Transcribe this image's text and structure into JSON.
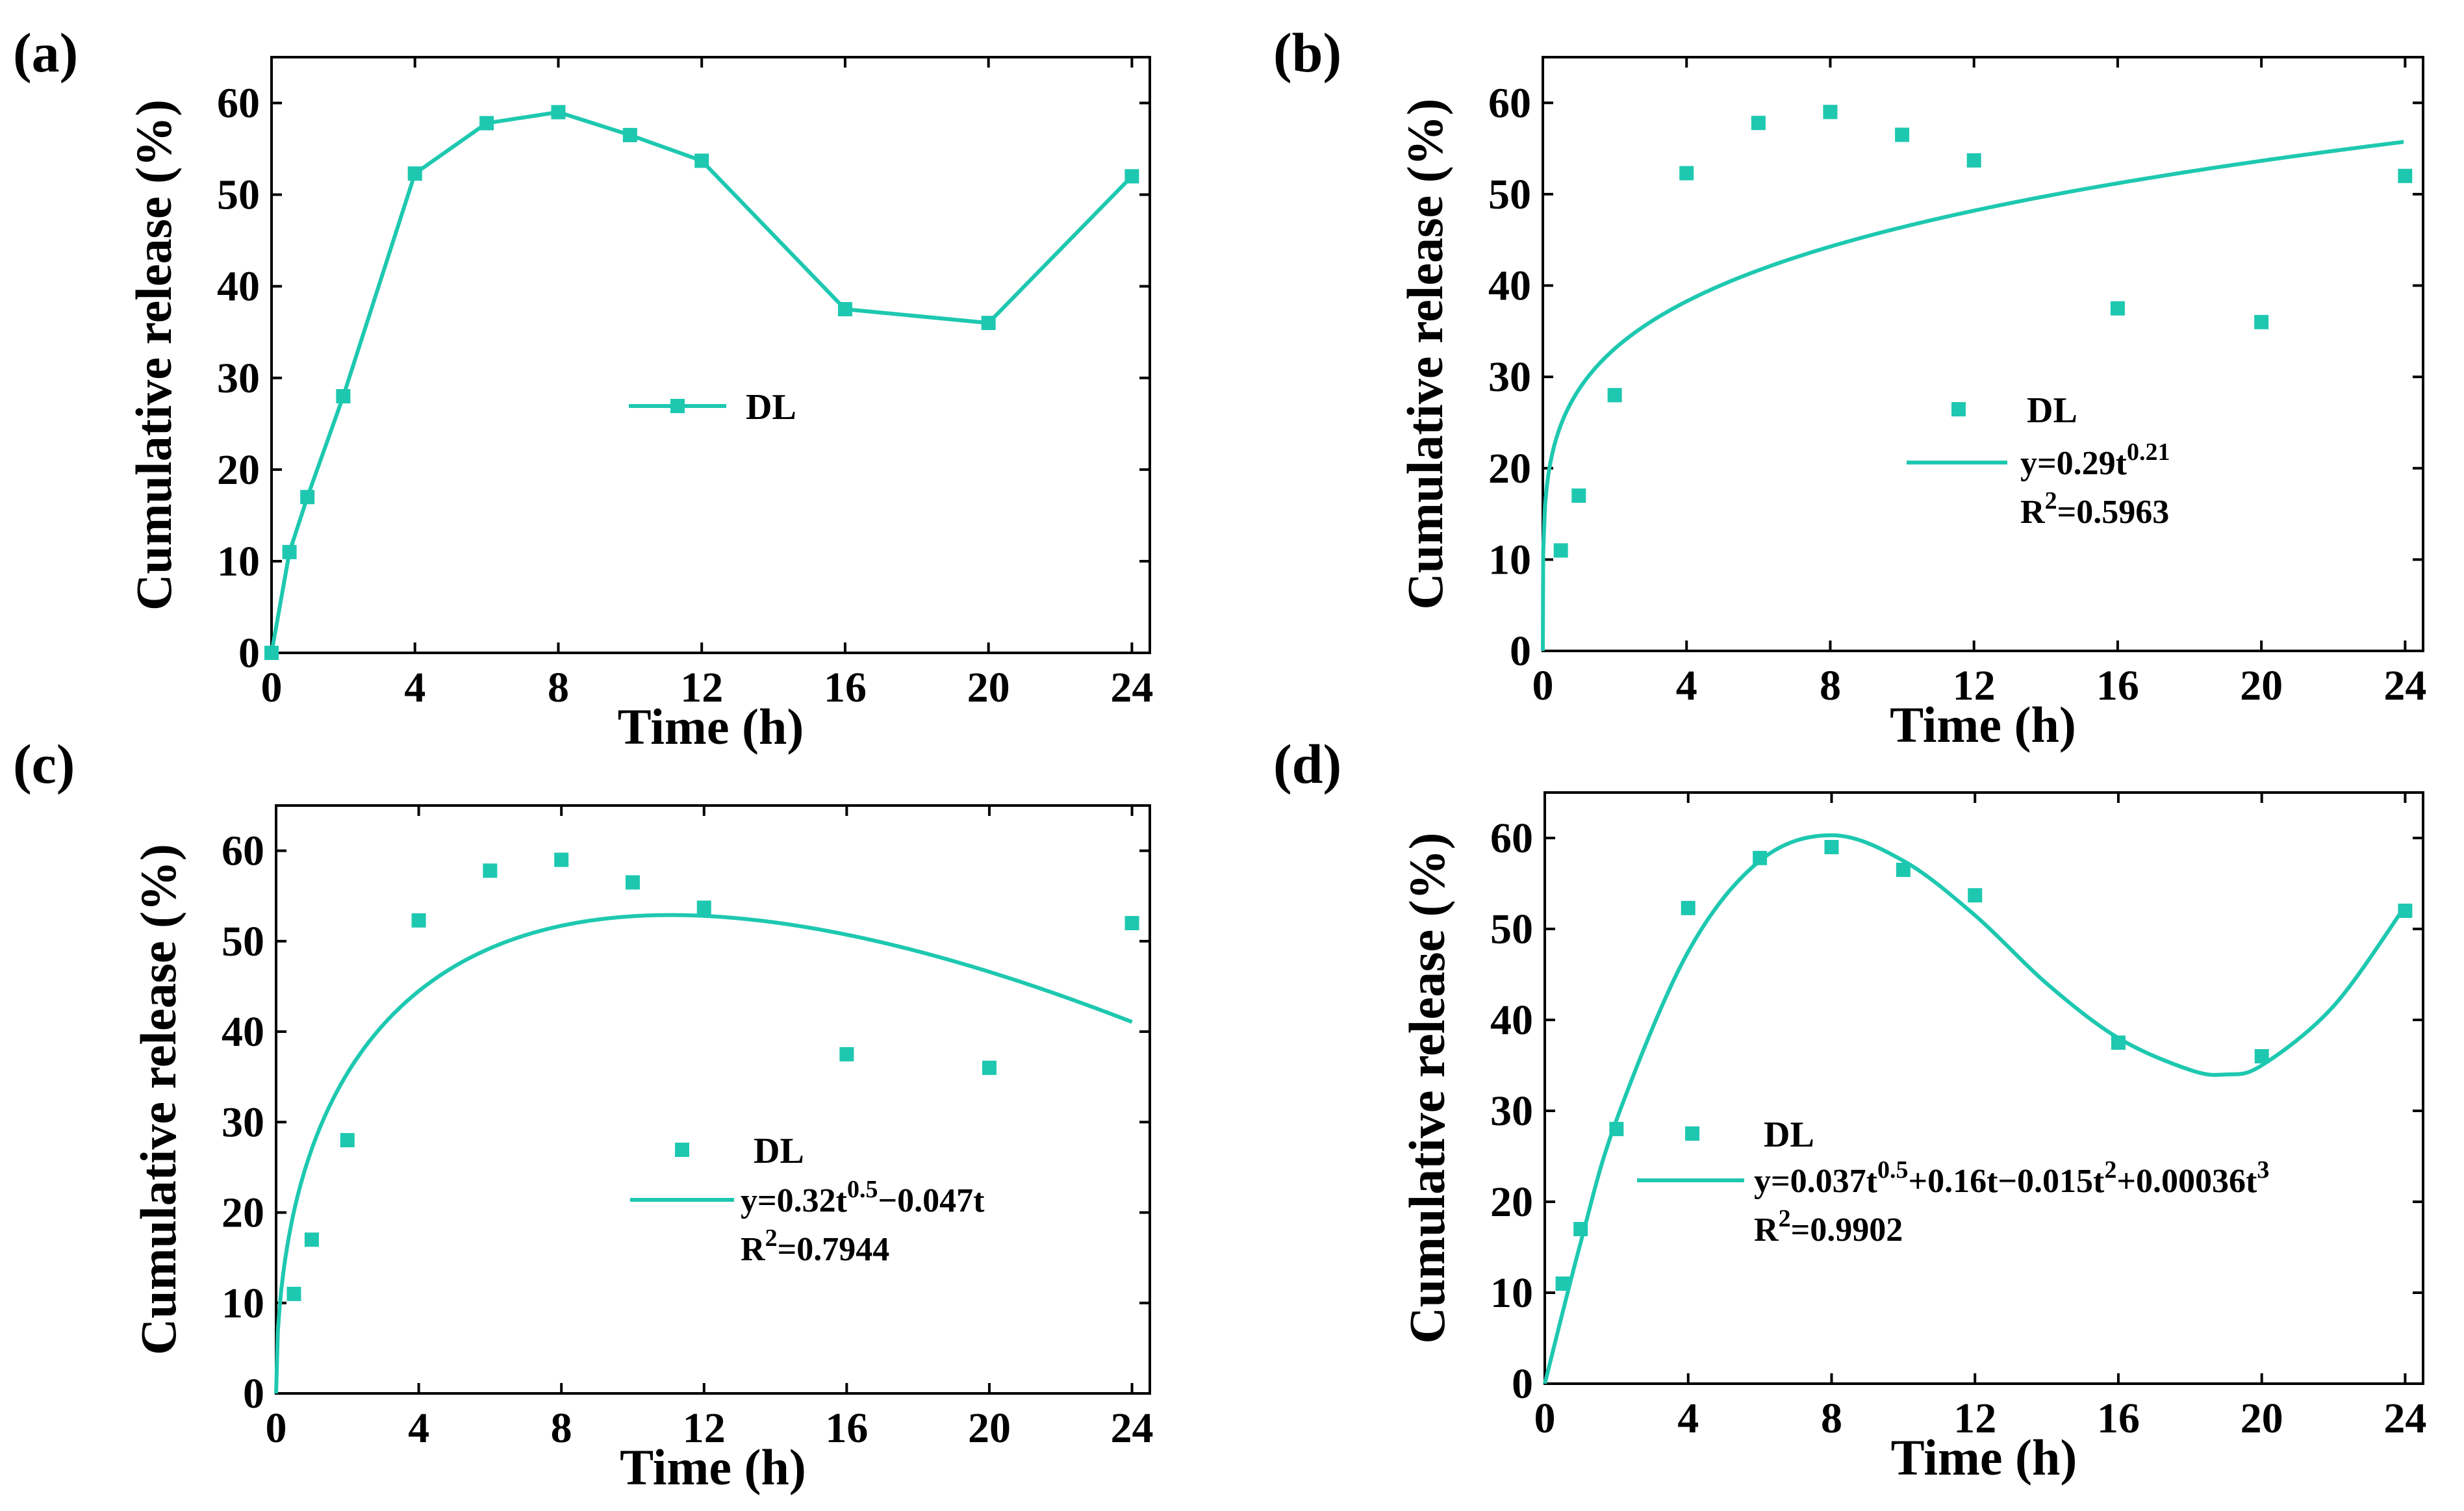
{
  "colors": {
    "series": "#1ec8b0",
    "axis": "#000000"
  },
  "chart_data": [
    {
      "panel_label": "(a)",
      "type": "line",
      "xlabel": "Time (h)",
      "ylabel": "Cumulative release (%)",
      "xlim": [
        0,
        24.5
      ],
      "ylim": [
        0,
        65
      ],
      "xticks": [
        0,
        4,
        8,
        12,
        16,
        20,
        24
      ],
      "yticks": [
        0,
        10,
        20,
        30,
        40,
        50,
        60
      ],
      "legend_position": "center",
      "series": [
        {
          "name": "DL",
          "style": "line-marker",
          "x": [
            0,
            0.5,
            1,
            2,
            4,
            6,
            8,
            10,
            12,
            16,
            20,
            24
          ],
          "y": [
            0,
            11,
            17,
            28,
            52.3,
            57.8,
            59,
            56.5,
            53.7,
            37.5,
            36,
            52
          ]
        }
      ]
    },
    {
      "panel_label": "(b)",
      "type": "scatter",
      "xlabel": "Time (h)",
      "ylabel": "Cumulative release (%)",
      "xlim": [
        0,
        24.5
      ],
      "ylim": [
        0,
        65
      ],
      "xticks": [
        0,
        4,
        8,
        12,
        16,
        20,
        24
      ],
      "yticks": [
        0,
        10,
        20,
        30,
        40,
        50,
        60
      ],
      "legend_position": "center-right",
      "series": [
        {
          "name": "DL",
          "style": "marker",
          "x": [
            0.5,
            1,
            2,
            4,
            6,
            8,
            10,
            12,
            16,
            20,
            24
          ],
          "y": [
            11,
            17,
            28,
            52.3,
            57.8,
            59,
            56.5,
            53.7,
            37.5,
            36,
            52
          ]
        },
        {
          "name": "fit",
          "style": "line",
          "model": "power",
          "coef": {
            "a": 28.6,
            "n": 0.21
          }
        }
      ],
      "equation": {
        "prefix": "y=0.29t",
        "sup": "0.21",
        "suffix": ""
      },
      "r2": {
        "prefix": "R",
        "sup": "2",
        "value": "=0.5963"
      }
    },
    {
      "panel_label": "(c)",
      "type": "scatter",
      "xlabel": "Time (h)",
      "ylabel": "Cumulative release (%)",
      "xlim": [
        0,
        24.5
      ],
      "ylim": [
        0,
        65
      ],
      "xticks": [
        0,
        4,
        8,
        12,
        16,
        20,
        24
      ],
      "yticks": [
        0,
        10,
        20,
        30,
        40,
        50,
        60
      ],
      "legend_position": "center-right",
      "series": [
        {
          "name": "DL",
          "style": "marker",
          "x": [
            0.5,
            1,
            2,
            4,
            6,
            8,
            10,
            12,
            16,
            20,
            24
          ],
          "y": [
            11,
            17,
            28,
            52.3,
            57.8,
            59,
            56.5,
            53.7,
            37.5,
            36,
            52
          ]
        },
        {
          "name": "fit",
          "style": "line",
          "model": "sqrt-linear",
          "coef": {
            "a": 31.8,
            "b": 4.78
          }
        }
      ],
      "equation": {
        "prefix": "y=0.32t",
        "sup": "0.5",
        "suffix": "−0.047t"
      },
      "r2": {
        "prefix": "R",
        "sup": "2",
        "value": "=0.7944"
      }
    },
    {
      "panel_label": "(d)",
      "type": "scatter",
      "xlabel": "Time (h)",
      "ylabel": "Cumulative release (%)",
      "xlim": [
        0,
        24.5
      ],
      "ylim": [
        0,
        65
      ],
      "xticks": [
        0,
        4,
        8,
        12,
        16,
        20,
        24
      ],
      "yticks": [
        0,
        10,
        20,
        30,
        40,
        50,
        60
      ],
      "legend_position": "center",
      "series": [
        {
          "name": "DL",
          "style": "marker",
          "x": [
            0.5,
            1,
            2,
            4,
            6,
            8,
            10,
            12,
            16,
            20,
            24
          ],
          "y": [
            11,
            17,
            28,
            52.3,
            57.8,
            59,
            56.5,
            53.7,
            37.5,
            36,
            52
          ]
        },
        {
          "name": "fit",
          "style": "line",
          "model": "cubic",
          "points": [
            [
              0,
              0
            ],
            [
              1,
              15.5
            ],
            [
              2,
              29
            ],
            [
              4,
              47.5
            ],
            [
              6,
              57.5
            ],
            [
              8,
              60.3
            ],
            [
              10,
              57.5
            ],
            [
              12,
              51.5
            ],
            [
              14,
              44
            ],
            [
              16,
              38
            ],
            [
              18,
              34.5
            ],
            [
              19,
              34
            ],
            [
              20,
              35
            ],
            [
              22,
              41.5
            ],
            [
              24,
              52.5
            ]
          ]
        }
      ],
      "equation": {
        "prefix": "y=0.037t",
        "sup": "0.5",
        "suffix": "+0.16t−0.015t",
        "sup2": "2",
        "suffix2": "+0.00036t",
        "sup3": "3"
      },
      "r2": {
        "prefix": "R",
        "sup": "2",
        "value": "=0.9902"
      }
    }
  ]
}
